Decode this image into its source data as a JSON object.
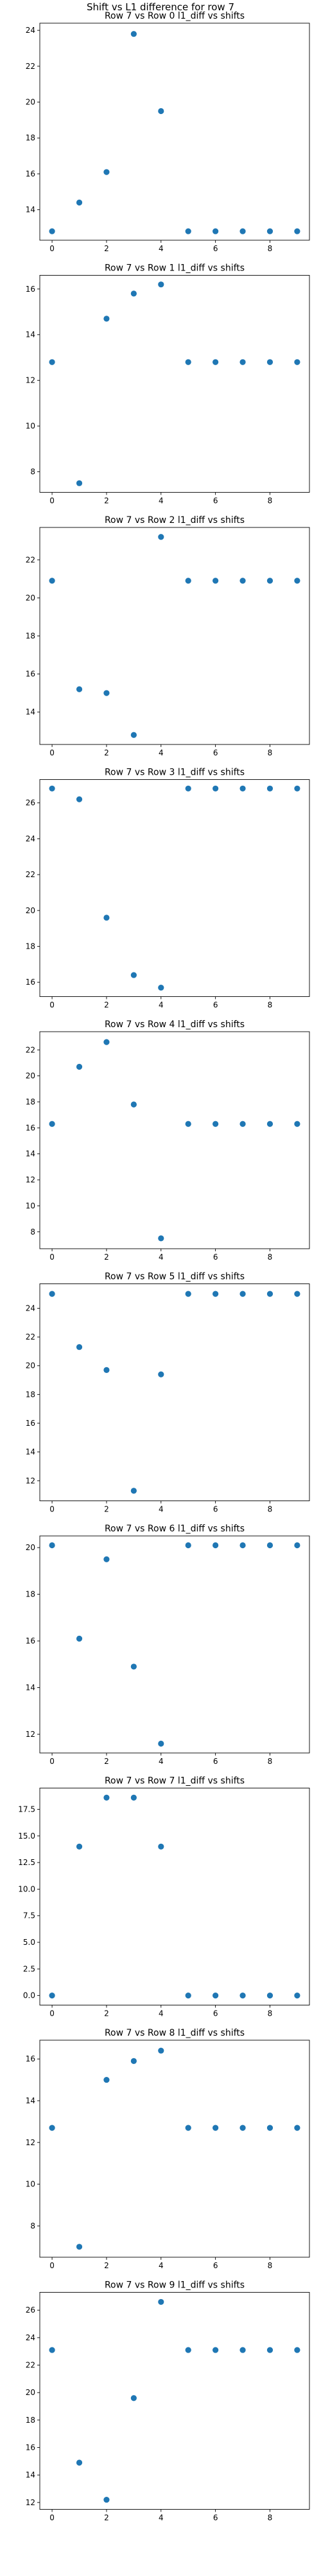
{
  "figure": {
    "suptitle": "Shift vs L1 difference for row 7",
    "marker_color": "#1f77b4"
  },
  "chart_data": [
    {
      "type": "scatter",
      "title": "Row 7 vs Row 0 l1_diff vs shifts",
      "x": [
        0,
        1,
        2,
        3,
        4,
        5,
        6,
        7,
        8,
        9
      ],
      "y": [
        12.8,
        14.4,
        16.1,
        23.8,
        19.5,
        12.8,
        12.8,
        12.8,
        12.8,
        12.8
      ],
      "ylim": [
        12.3,
        24.4
      ],
      "yticks": [
        14,
        16,
        18,
        20,
        22,
        24
      ],
      "xticks": [
        0,
        2,
        4,
        6,
        8
      ],
      "grid": false
    },
    {
      "type": "scatter",
      "title": "Row 7 vs Row 1 l1_diff vs shifts",
      "x": [
        0,
        1,
        2,
        3,
        4,
        5,
        6,
        7,
        8,
        9
      ],
      "y": [
        12.8,
        7.5,
        14.7,
        15.8,
        16.2,
        12.8,
        12.8,
        12.8,
        12.8,
        12.8
      ],
      "ylim": [
        7.1,
        16.6
      ],
      "yticks": [
        8,
        10,
        12,
        14,
        16
      ],
      "xticks": [
        0,
        2,
        4,
        6,
        8
      ],
      "grid": false
    },
    {
      "type": "scatter",
      "title": "Row 7 vs Row 2 l1_diff vs shifts",
      "x": [
        0,
        1,
        2,
        3,
        4,
        5,
        6,
        7,
        8,
        9
      ],
      "y": [
        20.9,
        15.2,
        15.0,
        12.8,
        23.2,
        20.9,
        20.9,
        20.9,
        20.9,
        20.9
      ],
      "ylim": [
        12.3,
        23.7
      ],
      "yticks": [
        14,
        16,
        18,
        20,
        22
      ],
      "xticks": [
        0,
        2,
        4,
        6,
        8
      ],
      "grid": false
    },
    {
      "type": "scatter",
      "title": "Row 7 vs Row 3 l1_diff vs shifts",
      "x": [
        0,
        1,
        2,
        3,
        4,
        5,
        6,
        7,
        8,
        9
      ],
      "y": [
        26.8,
        26.2,
        19.6,
        16.4,
        15.7,
        26.8,
        26.8,
        26.8,
        26.8,
        26.8
      ],
      "ylim": [
        15.2,
        27.3
      ],
      "yticks": [
        16,
        18,
        20,
        22,
        24,
        26
      ],
      "xticks": [
        0,
        2,
        4,
        6,
        8
      ],
      "grid": false
    },
    {
      "type": "scatter",
      "title": "Row 7 vs Row 4 l1_diff vs shifts",
      "x": [
        0,
        1,
        2,
        3,
        4,
        5,
        6,
        7,
        8,
        9
      ],
      "y": [
        16.3,
        20.7,
        22.6,
        17.8,
        7.5,
        16.3,
        16.3,
        16.3,
        16.3,
        16.3
      ],
      "ylim": [
        6.7,
        23.4
      ],
      "yticks": [
        8,
        10,
        12,
        14,
        16,
        18,
        20,
        22
      ],
      "xticks": [
        0,
        2,
        4,
        6,
        8
      ],
      "grid": false
    },
    {
      "type": "scatter",
      "title": "Row 7 vs Row 5 l1_diff vs shifts",
      "x": [
        0,
        1,
        2,
        3,
        4,
        5,
        6,
        7,
        8,
        9
      ],
      "y": [
        25.0,
        21.3,
        19.7,
        11.3,
        19.4,
        25.0,
        25.0,
        25.0,
        25.0,
        25.0
      ],
      "ylim": [
        10.6,
        25.7
      ],
      "yticks": [
        12,
        14,
        16,
        18,
        20,
        22,
        24
      ],
      "xticks": [
        0,
        2,
        4,
        6,
        8
      ],
      "grid": false
    },
    {
      "type": "scatter",
      "title": "Row 7 vs Row 6 l1_diff vs shifts",
      "x": [
        0,
        1,
        2,
        3,
        4,
        5,
        6,
        7,
        8,
        9
      ],
      "y": [
        20.1,
        16.1,
        19.5,
        14.9,
        11.6,
        20.1,
        20.1,
        20.1,
        20.1,
        20.1
      ],
      "ylim": [
        11.2,
        20.5
      ],
      "yticks": [
        12,
        14,
        16,
        18,
        20
      ],
      "xticks": [
        0,
        2,
        4,
        6,
        8
      ],
      "grid": false
    },
    {
      "type": "scatter",
      "title": "Row 7 vs Row 7 l1_diff vs shifts",
      "x": [
        0,
        1,
        2,
        3,
        4,
        5,
        6,
        7,
        8,
        9
      ],
      "y": [
        0.0,
        14.0,
        18.6,
        18.6,
        14.0,
        0.0,
        0.0,
        0.0,
        0.0,
        0.0
      ],
      "ylim": [
        -0.9,
        19.5
      ],
      "yticks": [
        0.0,
        2.5,
        5.0,
        7.5,
        10.0,
        12.5,
        15.0,
        17.5
      ],
      "xticks": [
        0,
        2,
        4,
        6,
        8
      ],
      "grid": false
    },
    {
      "type": "scatter",
      "title": "Row 7 vs Row 8 l1_diff vs shifts",
      "x": [
        0,
        1,
        2,
        3,
        4,
        5,
        6,
        7,
        8,
        9
      ],
      "y": [
        12.7,
        7.0,
        15.0,
        15.9,
        16.4,
        12.7,
        12.7,
        12.7,
        12.7,
        12.7
      ],
      "ylim": [
        6.5,
        16.9
      ],
      "yticks": [
        8,
        10,
        12,
        14,
        16
      ],
      "xticks": [
        0,
        2,
        4,
        6,
        8
      ],
      "grid": false
    },
    {
      "type": "scatter",
      "title": "Row 7 vs Row 9 l1_diff vs shifts",
      "x": [
        0,
        1,
        2,
        3,
        4,
        5,
        6,
        7,
        8,
        9
      ],
      "y": [
        23.1,
        14.9,
        12.2,
        19.6,
        26.6,
        23.1,
        23.1,
        23.1,
        23.1,
        23.1
      ],
      "ylim": [
        11.5,
        27.3
      ],
      "yticks": [
        12,
        14,
        16,
        18,
        20,
        22,
        24,
        26
      ],
      "xticks": [
        0,
        2,
        4,
        6,
        8
      ],
      "grid": false
    }
  ]
}
